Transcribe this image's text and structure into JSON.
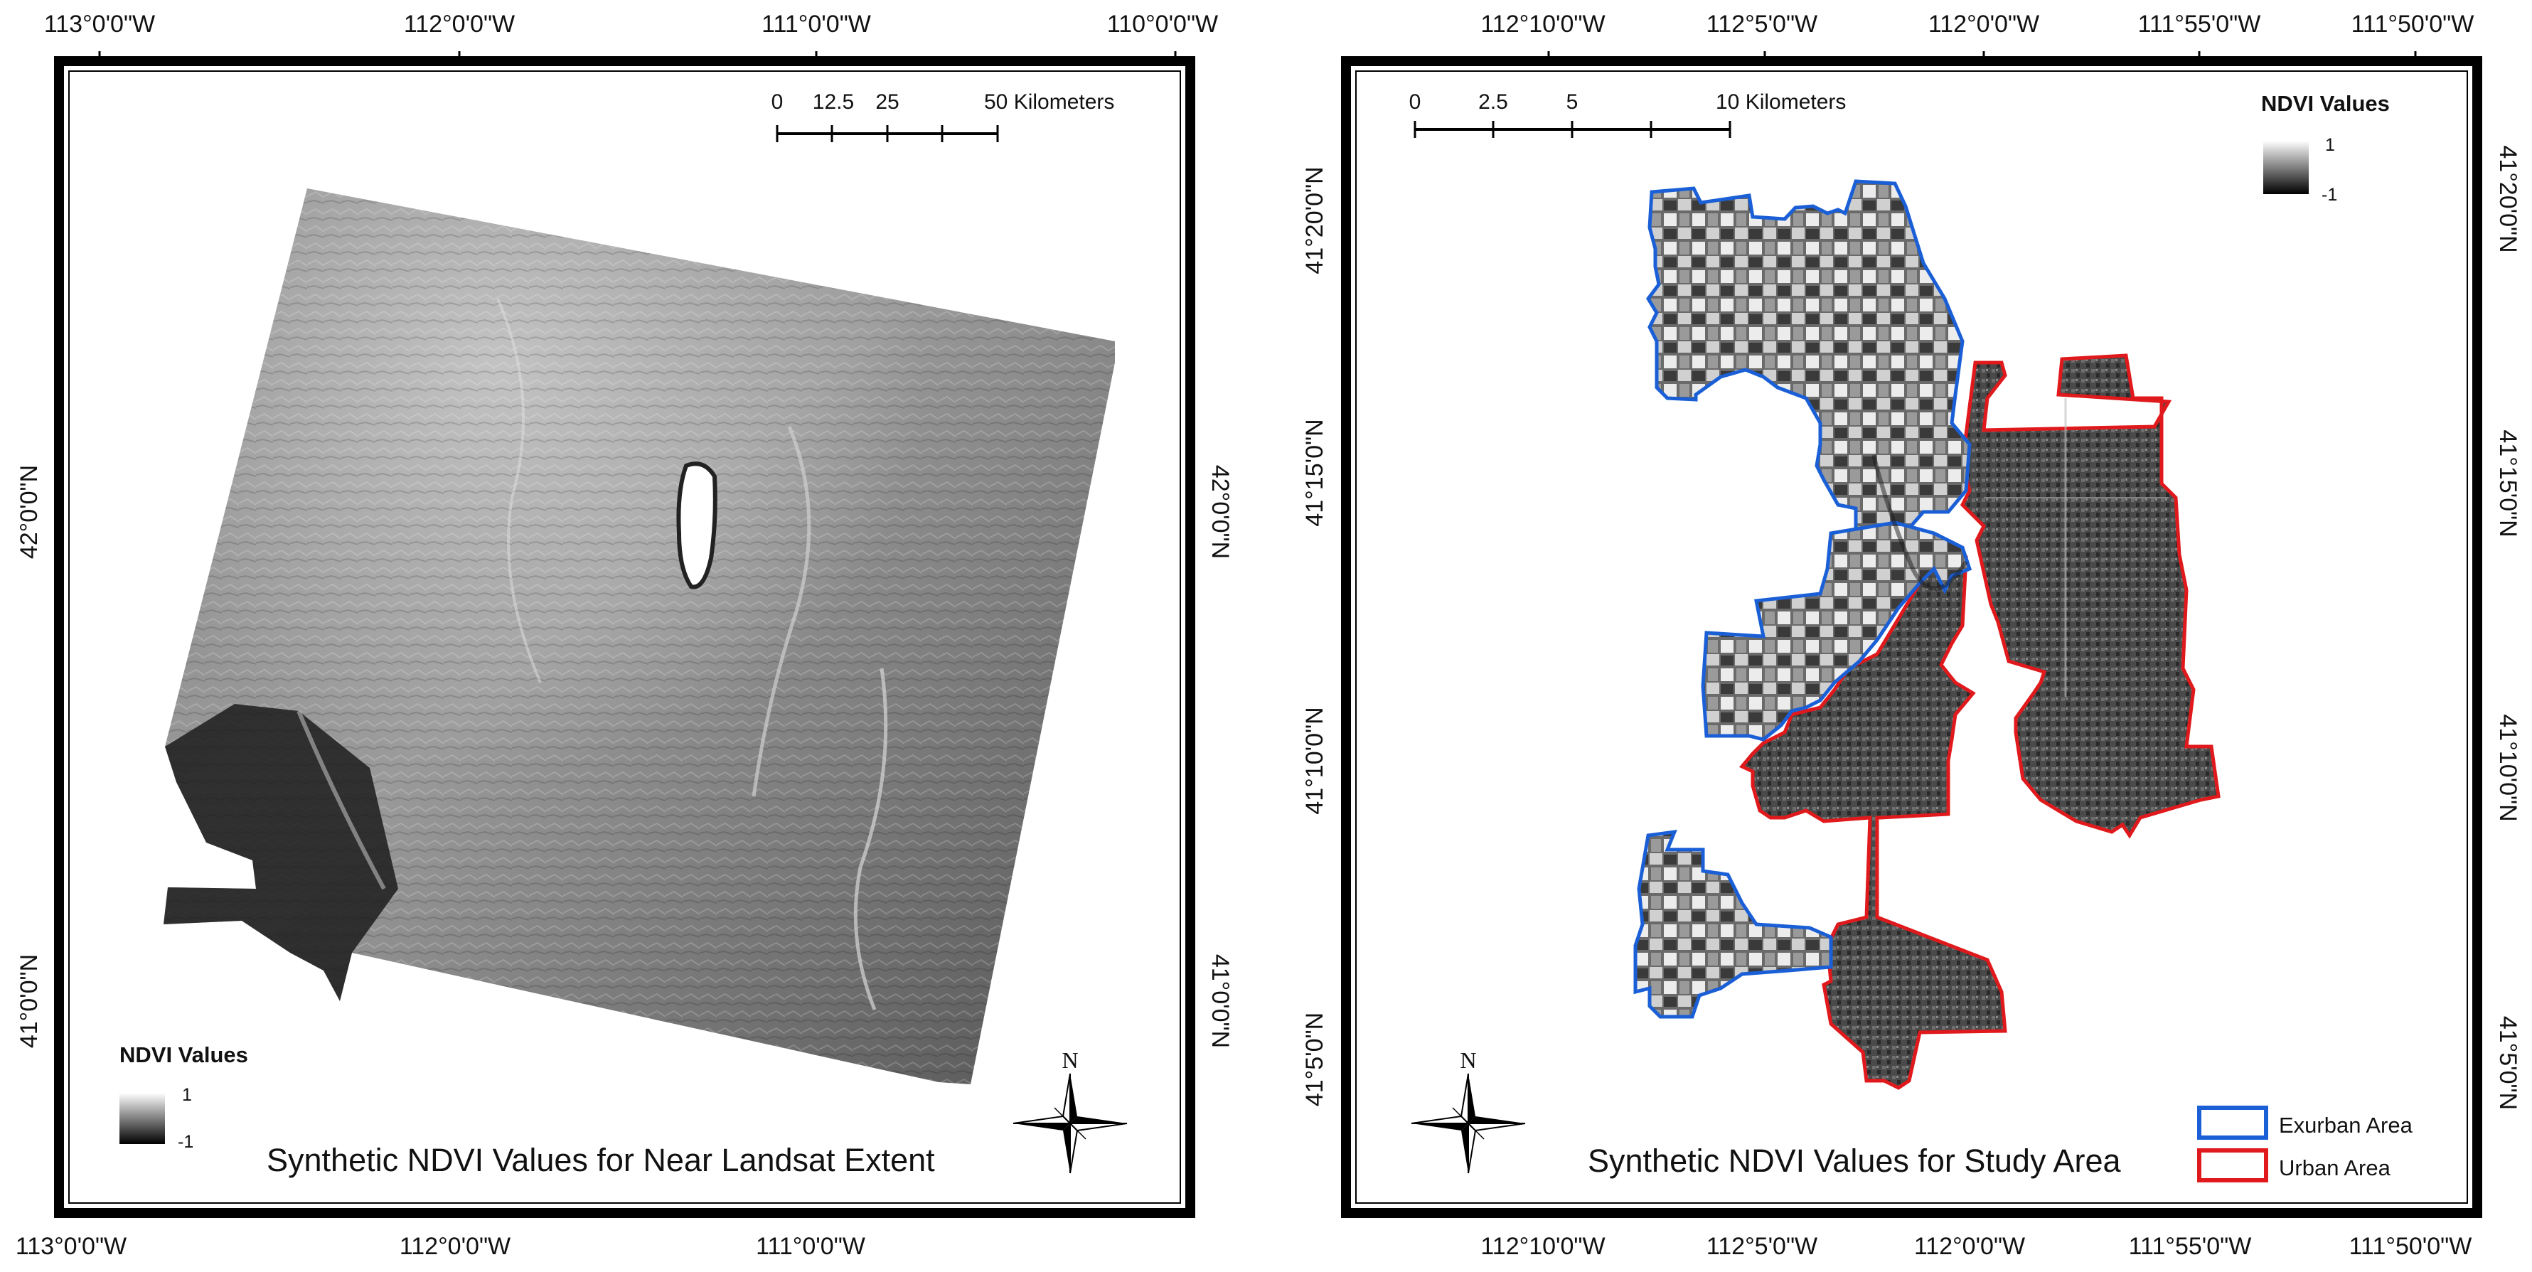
{
  "left_map": {
    "title": "Synthetic NDVI Values for Near Landsat Extent",
    "top_ticks": [
      "113°0'0\"W",
      "112°0'0\"W",
      "111°0'0\"W",
      "110°0'0\"W"
    ],
    "bottom_ticks": [
      "113°0'0\"W",
      "112°0'0\"W",
      "111°0'0\"W"
    ],
    "left_ticks": [
      "42°0'0\"N",
      "41°0'0\"N"
    ],
    "right_ticks": [
      "42°0'0\"N",
      "41°0'0\"N"
    ],
    "scalebar": {
      "labels": [
        "0",
        "12.5",
        "25",
        "50 Kilometers"
      ]
    },
    "legend": {
      "title": "NDVI Values",
      "max": "1",
      "min": "-1"
    },
    "north_label": "N"
  },
  "right_map": {
    "title": "Synthetic NDVI Values for Study Area",
    "top_ticks": [
      "112°10'0\"W",
      "112°5'0\"W",
      "112°0'0\"W",
      "111°55'0\"W",
      "111°50'0\"W"
    ],
    "bottom_ticks": [
      "112°10'0\"W",
      "112°5'0\"W",
      "112°0'0\"W",
      "111°55'0\"W",
      "111°50'0\"W"
    ],
    "left_ticks": [
      "41°20'0\"N",
      "41°15'0\"N",
      "41°10'0\"N",
      "41°5'0\"N"
    ],
    "right_ticks": [
      "41°20'0\"N",
      "41°15'0\"N",
      "41°10'0\"N",
      "41°5'0\"N"
    ],
    "scalebar": {
      "labels": [
        "0",
        "2.5",
        "5",
        "10 Kilometers"
      ]
    },
    "legend": {
      "title": "NDVI Values",
      "max": "1",
      "min": "-1"
    },
    "north_label": "N",
    "boundary_legend": [
      {
        "label": "Exurban Area",
        "color": "#1a5fd6"
      },
      {
        "label": "Urban Area",
        "color": "#e0191c"
      }
    ]
  }
}
